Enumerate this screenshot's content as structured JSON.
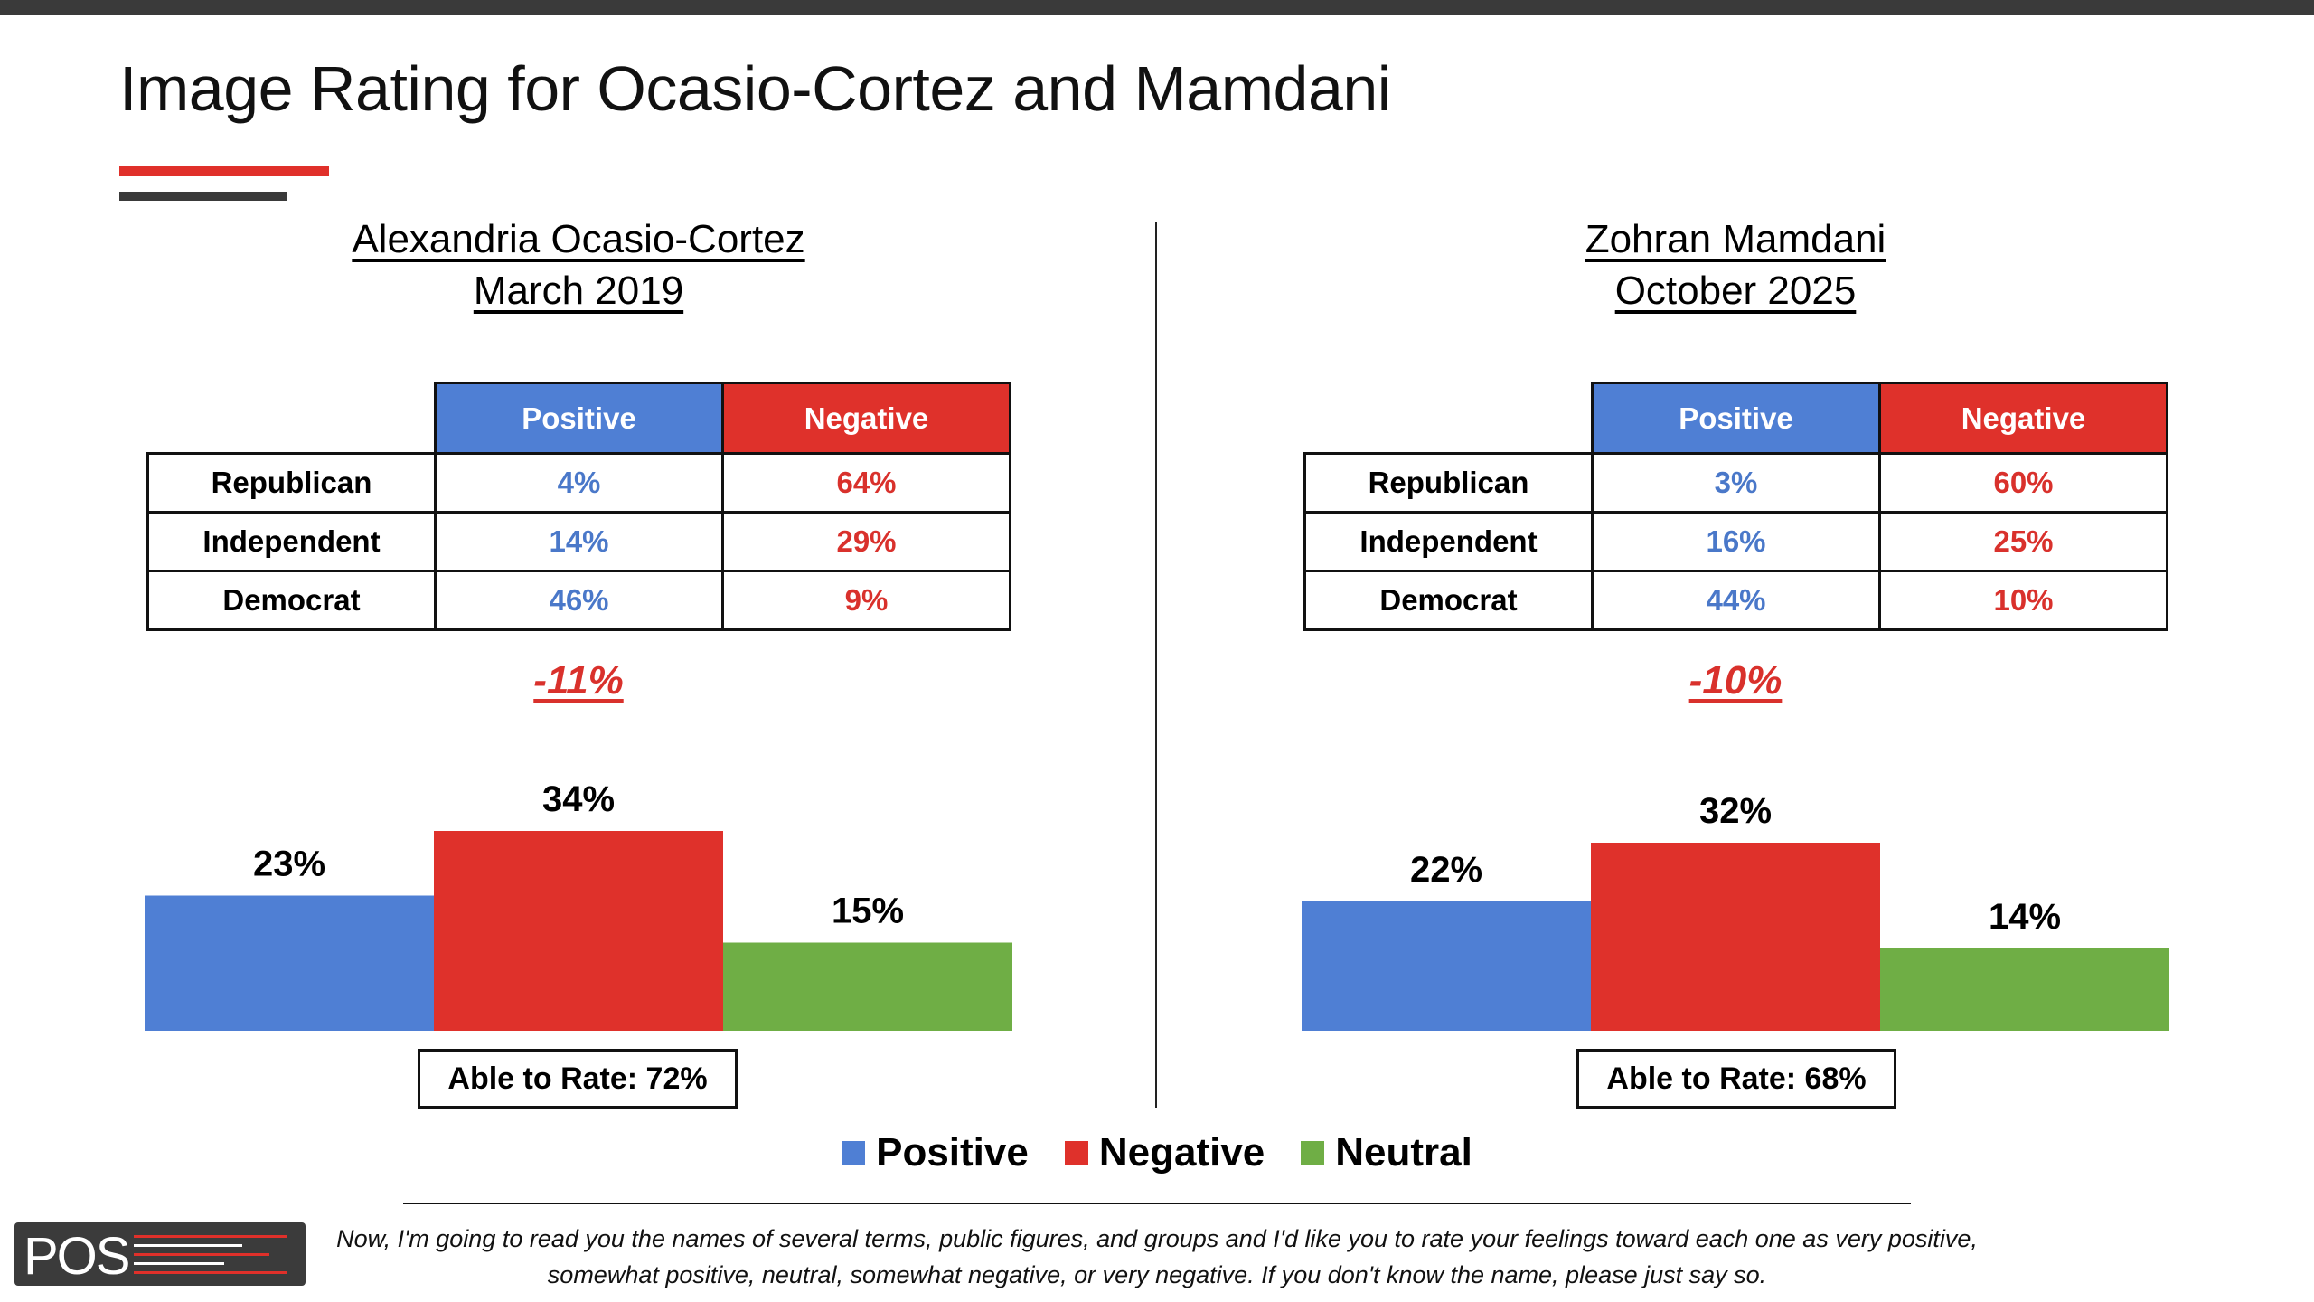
{
  "title": "Image Rating for Ocasio-Cortez and Mamdani",
  "colors": {
    "positive": "#4f7fd4",
    "negative": "#df312b",
    "neutral": "#6fae45",
    "positive_text": "#4a78c9",
    "negative_text": "#d9312c"
  },
  "table_headers": {
    "positive": "Positive",
    "negative": "Negative"
  },
  "panels": [
    {
      "name": "Alexandria Ocasio-Cortez",
      "date": "March 2019",
      "rows": [
        {
          "label": "Republican",
          "positive": "4%",
          "negative": "64%"
        },
        {
          "label": "Independent",
          "positive": "14%",
          "negative": "29%"
        },
        {
          "label": "Democrat",
          "positive": "46%",
          "negative": "9%"
        }
      ],
      "net": "-11%",
      "able_to_rate": "Able to Rate: 72%"
    },
    {
      "name": "Zohran Mamdani",
      "date": "October 2025",
      "rows": [
        {
          "label": "Republican",
          "positive": "3%",
          "negative": "60%"
        },
        {
          "label": "Independent",
          "positive": "16%",
          "negative": "25%"
        },
        {
          "label": "Democrat",
          "positive": "44%",
          "negative": "10%"
        }
      ],
      "net": "-10%",
      "able_to_rate": "Able to Rate: 68%"
    }
  ],
  "chart_data": [
    {
      "type": "bar",
      "title": "Alexandria Ocasio-Cortez March 2019",
      "categories": [
        "Positive",
        "Negative",
        "Neutral"
      ],
      "values": [
        23,
        34,
        15
      ],
      "labels": [
        "23%",
        "34%",
        "15%"
      ],
      "ylim": [
        0,
        40
      ]
    },
    {
      "type": "bar",
      "title": "Zohran Mamdani October 2025",
      "categories": [
        "Positive",
        "Negative",
        "Neutral"
      ],
      "values": [
        22,
        32,
        14
      ],
      "labels": [
        "22%",
        "32%",
        "14%"
      ],
      "ylim": [
        0,
        40
      ]
    }
  ],
  "legend": [
    "Positive",
    "Negative",
    "Neutral"
  ],
  "footnote_lines": [
    "Now, I'm going to read you the names of several terms, public figures, and groups and I'd like you to rate your feelings toward each one as very positive,",
    "somewhat positive, neutral, somewhat negative, or very negative. If you don't know the name, please just say so."
  ],
  "logo_text": "POS"
}
